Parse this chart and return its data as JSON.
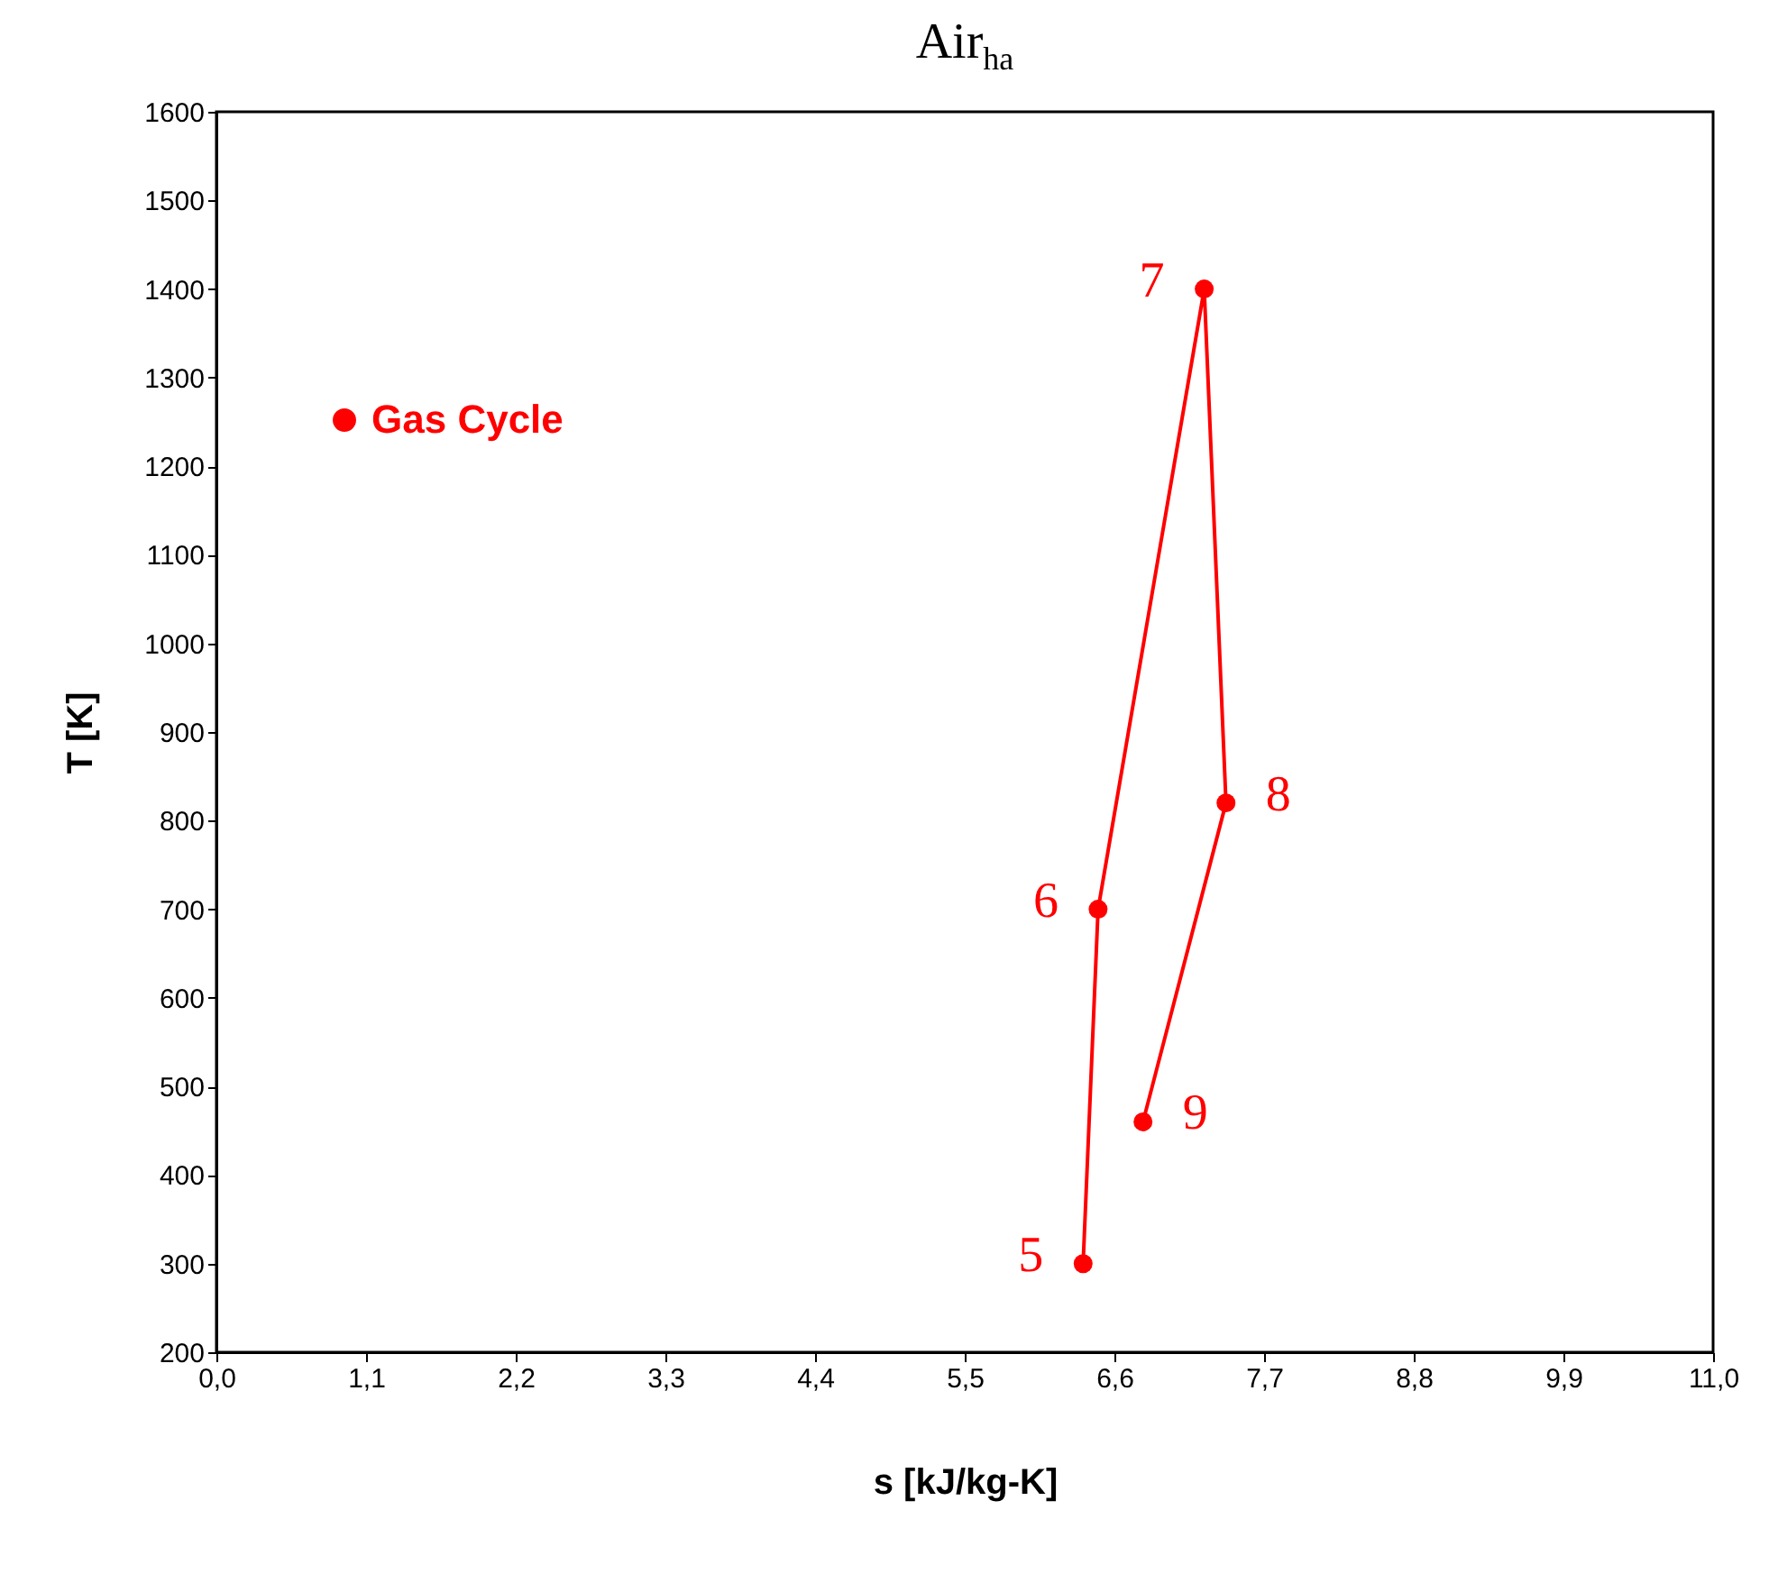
{
  "chart_data": {
    "type": "line",
    "title": "Air$_{ha}$",
    "xlabel": "s [kJ/kg-K]",
    "ylabel": "T [K]",
    "x": [
      6.37,
      6.48,
      7.26,
      7.42,
      6.81
    ],
    "series": [
      {
        "name": "Gas Cycle",
        "color": "#ff0000",
        "values": [
          300,
          700,
          1400,
          820,
          460
        ]
      }
    ],
    "xlim": [
      0,
      11
    ],
    "xticks": [
      {
        "value": 0,
        "label": "0,0"
      },
      {
        "value": 1.1,
        "label": "1,1"
      },
      {
        "value": 2.2,
        "label": "2,2"
      },
      {
        "value": 3.3,
        "label": "3,3"
      },
      {
        "value": 4.4,
        "label": "4,4"
      },
      {
        "value": 5.5,
        "label": "5,5"
      },
      {
        "value": 6.6,
        "label": "6,6"
      },
      {
        "value": 7.7,
        "label": "7,7"
      },
      {
        "value": 8.8,
        "label": "8,8"
      },
      {
        "value": 9.9,
        "label": "9,9"
      },
      {
        "value": 11,
        "label": "11,0"
      }
    ],
    "ylim": [
      200,
      1600
    ],
    "yticks": [
      200,
      300,
      400,
      500,
      600,
      700,
      800,
      900,
      1000,
      1100,
      1200,
      1300,
      1400,
      1500,
      1600
    ],
    "annotations": [
      {
        "text": "5",
        "x": 6.37,
        "y": 300
      },
      {
        "text": "6",
        "x": 6.48,
        "y": 700
      },
      {
        "text": "7",
        "x": 7.26,
        "y": 1400
      },
      {
        "text": "8",
        "x": 7.42,
        "y": 820
      },
      {
        "text": "9",
        "x": 6.81,
        "y": 460
      }
    ],
    "grid": false,
    "legend": "top left",
    "marker": "circle",
    "line_style": "solid"
  }
}
